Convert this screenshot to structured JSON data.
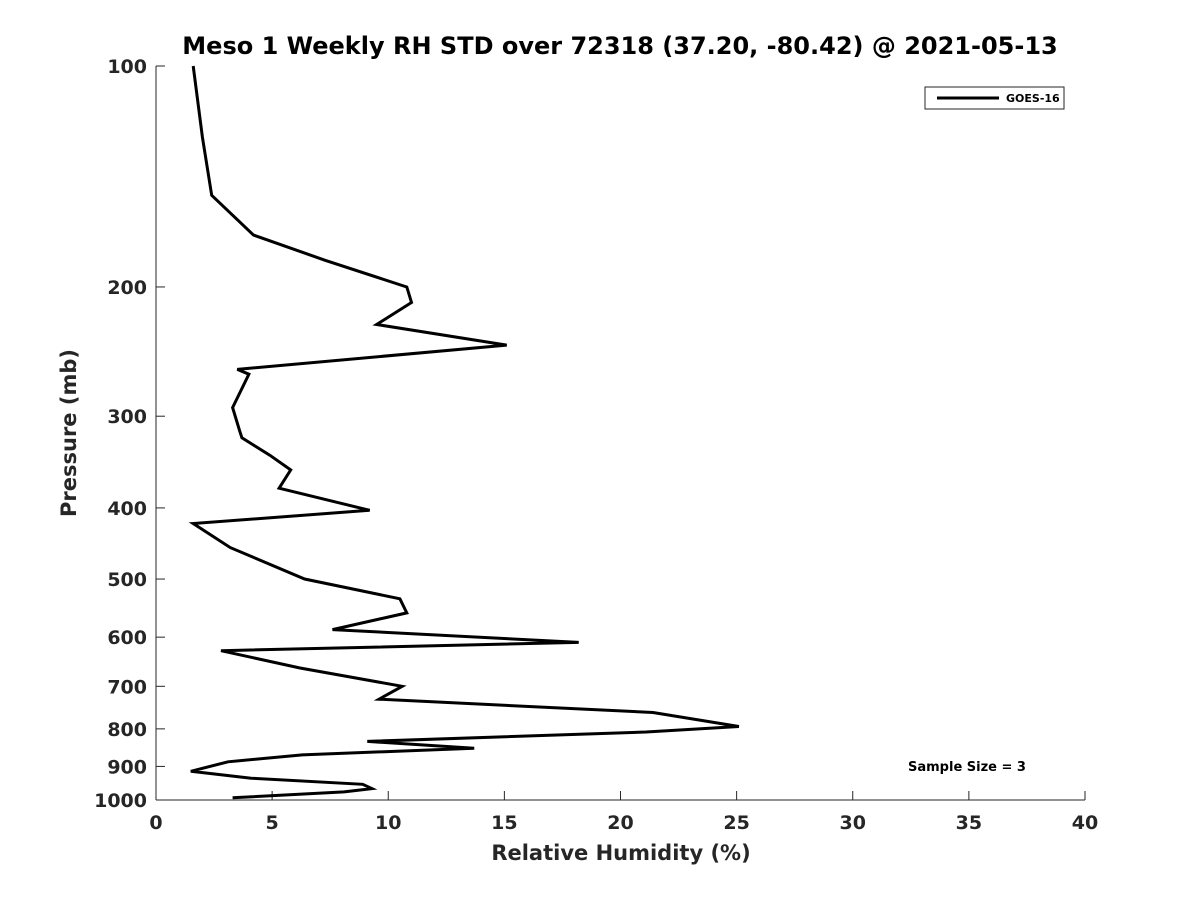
{
  "chart_data": {
    "type": "line",
    "title": "Meso 1 Weekly RH STD over 72318 (37.20, -80.42) @ 2021-05-13",
    "xlabel": "Relative Humidity (%)",
    "ylabel": "Pressure (mb)",
    "xlim": [
      0,
      40
    ],
    "ylim": [
      100,
      1000
    ],
    "y_scale": "log",
    "y_reversed": true,
    "x_ticks": [
      "0",
      "5",
      "10",
      "15",
      "20",
      "25",
      "30",
      "35",
      "40"
    ],
    "y_ticks": [
      "100",
      "200",
      "300",
      "400",
      "500",
      "600",
      "700",
      "800",
      "900",
      "1000"
    ],
    "grid": false,
    "legend_position": "top-right",
    "annotation": "Sample Size = 3",
    "series": [
      {
        "name": "GOES-16",
        "color": "#000000",
        "x": [
          1.6,
          2.0,
          2.4,
          4.2,
          7.3,
          10.8,
          11.0,
          9.5,
          15.1,
          3.5,
          4.0,
          3.3,
          3.6,
          3.7,
          4.9,
          5.8,
          5.3,
          9.2,
          1.6,
          3.2,
          6.4,
          10.5,
          10.8,
          7.6,
          18.2,
          2.8,
          6.2,
          10.6,
          9.6,
          21.4,
          25.1,
          21.1,
          9.1,
          13.7,
          6.3,
          3.1,
          1.5,
          4.1,
          8.9,
          9.3,
          8.1,
          3.3
        ],
        "y": [
          100,
          125,
          150,
          170,
          184,
          200,
          210,
          225,
          240,
          259,
          263,
          292,
          314,
          321,
          339,
          355,
          376,
          403,
          420,
          453,
          500,
          532,
          556,
          586,
          610,
          626,
          661,
          700,
          729,
          760,
          794,
          808,
          832,
          850,
          868,
          887,
          914,
          934,
          952,
          965,
          975,
          993
        ]
      }
    ]
  }
}
